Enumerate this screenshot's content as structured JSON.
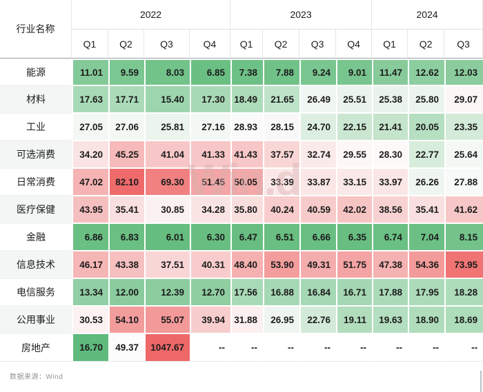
{
  "watermark": "Win.d",
  "footer": {
    "source_label": "数据来源：Wind"
  },
  "colors": {
    "green_max": "#5fba7d",
    "red_max": "#ee6868",
    "neutral": "#ffffff",
    "header_rule": "#989ea3",
    "grid_light": "#e2e5e7"
  },
  "table": {
    "corner_label": "行业名称",
    "year_groups": [
      {
        "label": "2022",
        "span": 4
      },
      {
        "label": "2023",
        "span": 4
      },
      {
        "label": "2024",
        "span": 3
      }
    ],
    "quarter_headers": [
      "Q1",
      "Q2",
      "Q3",
      "Q4",
      "Q1",
      "Q2",
      "Q3",
      "Q4",
      "Q1",
      "Q2",
      "Q3"
    ],
    "rows": [
      {
        "label": "能源",
        "cells": [
          {
            "v": "11.01",
            "c": "#84ca99"
          },
          {
            "v": "9.59",
            "c": "#7bc792"
          },
          {
            "v": "8.03",
            "c": "#72c38a"
          },
          {
            "v": "6.85",
            "c": "#6abf83"
          },
          {
            "v": "7.38",
            "c": "#6ec186"
          },
          {
            "v": "7.88",
            "c": "#71c289"
          },
          {
            "v": "9.24",
            "c": "#79c690"
          },
          {
            "v": "9.01",
            "c": "#78c58f"
          },
          {
            "v": "11.47",
            "c": "#87cb9b"
          },
          {
            "v": "12.62",
            "c": "#8dcea1"
          },
          {
            "v": "12.03",
            "c": "#8acc9e"
          }
        ]
      },
      {
        "label": "材料",
        "cells": [
          {
            "v": "17.63",
            "c": "#a9dab7"
          },
          {
            "v": "17.71",
            "c": "#aadab8"
          },
          {
            "v": "15.40",
            "c": "#9dd5ae"
          },
          {
            "v": "17.30",
            "c": "#a8d9b6"
          },
          {
            "v": "18.49",
            "c": "#addcba"
          },
          {
            "v": "21.65",
            "c": "#bee3c8"
          },
          {
            "v": "26.49",
            "c": "#f0f6f1"
          },
          {
            "v": "25.51",
            "c": "#eaf3ec"
          },
          {
            "v": "25.38",
            "c": "#e9f2eb"
          },
          {
            "v": "25.80",
            "c": "#ebf4ed"
          },
          {
            "v": "29.07",
            "c": "#fdf6f6"
          }
        ]
      },
      {
        "label": "工业",
        "cells": [
          {
            "v": "27.05",
            "c": "#f3f8f4"
          },
          {
            "v": "27.06",
            "c": "#f3f8f4"
          },
          {
            "v": "25.81",
            "c": "#ebf4ed"
          },
          {
            "v": "27.16",
            "c": "#f4f8f5"
          },
          {
            "v": "28.93",
            "c": "#fbfafa"
          },
          {
            "v": "28.15",
            "c": "#f9f8f8"
          },
          {
            "v": "24.70",
            "c": "#dcefe1"
          },
          {
            "v": "22.15",
            "c": "#cbe7d1"
          },
          {
            "v": "21.41",
            "c": "#c5e4cc"
          },
          {
            "v": "20.05",
            "c": "#b6dfc1"
          },
          {
            "v": "23.35",
            "c": "#d3ebd8"
          }
        ]
      },
      {
        "label": "可选消费",
        "cells": [
          {
            "v": "34.20",
            "c": "#fae3e3"
          },
          {
            "v": "45.25",
            "c": "#f6baba"
          },
          {
            "v": "41.04",
            "c": "#f7c7c7"
          },
          {
            "v": "41.33",
            "c": "#f7c6c6"
          },
          {
            "v": "41.43",
            "c": "#f7c6c6"
          },
          {
            "v": "37.57",
            "c": "#f9d6d6"
          },
          {
            "v": "32.74",
            "c": "#fbeaea"
          },
          {
            "v": "29.55",
            "c": "#fdf7f7"
          },
          {
            "v": "28.30",
            "c": "#fdf9f9"
          },
          {
            "v": "22.77",
            "c": "#d8ecdc"
          },
          {
            "v": "25.64",
            "c": "#f4f8f5"
          }
        ]
      },
      {
        "label": "日常消费",
        "cells": [
          {
            "v": "47.02",
            "c": "#f5b3b3"
          },
          {
            "v": "82.10",
            "c": "#ef6a6a"
          },
          {
            "v": "69.30",
            "c": "#f18181"
          },
          {
            "v": "51.45",
            "c": "#f4a5a5"
          },
          {
            "v": "50.05",
            "c": "#f4a8a8"
          },
          {
            "v": "33.39",
            "c": "#fbe7e7"
          },
          {
            "v": "33.87",
            "c": "#fbe6e6"
          },
          {
            "v": "33.15",
            "c": "#fbe8e8"
          },
          {
            "v": "33.97",
            "c": "#fbe6e6"
          },
          {
            "v": "26.26",
            "c": "#eff5f0"
          },
          {
            "v": "27.88",
            "c": "#f7faf8"
          }
        ]
      },
      {
        "label": "医疗保健",
        "cells": [
          {
            "v": "43.95",
            "c": "#f6bfbf"
          },
          {
            "v": "35.41",
            "c": "#f9dfdf"
          },
          {
            "v": "30.85",
            "c": "#fcf1f1"
          },
          {
            "v": "34.28",
            "c": "#fae3e3"
          },
          {
            "v": "35.80",
            "c": "#f9dede"
          },
          {
            "v": "40.24",
            "c": "#f8cccc"
          },
          {
            "v": "40.59",
            "c": "#f8cbcb"
          },
          {
            "v": "42.02",
            "c": "#f7c4c4"
          },
          {
            "v": "38.56",
            "c": "#f8d2d2"
          },
          {
            "v": "35.41",
            "c": "#f9dfdf"
          },
          {
            "v": "41.62",
            "c": "#f7c7c7"
          }
        ]
      },
      {
        "label": "金融",
        "cells": [
          {
            "v": "6.86",
            "c": "#6abf83"
          },
          {
            "v": "6.83",
            "c": "#6abf83"
          },
          {
            "v": "6.01",
            "c": "#66bd80"
          },
          {
            "v": "6.30",
            "c": "#68be81"
          },
          {
            "v": "6.47",
            "c": "#68be82"
          },
          {
            "v": "6.51",
            "c": "#69be82"
          },
          {
            "v": "6.66",
            "c": "#69bf83"
          },
          {
            "v": "6.35",
            "c": "#68be81"
          },
          {
            "v": "6.74",
            "c": "#6ac084"
          },
          {
            "v": "7.04",
            "c": "#6cc085"
          },
          {
            "v": "8.15",
            "c": "#73c38b"
          }
        ]
      },
      {
        "label": "信息技术",
        "cells": [
          {
            "v": "46.17",
            "c": "#f5b6b6"
          },
          {
            "v": "43.38",
            "c": "#f6c0c0"
          },
          {
            "v": "37.51",
            "c": "#f9d6d6"
          },
          {
            "v": "40.31",
            "c": "#f8cccc"
          },
          {
            "v": "48.40",
            "c": "#f5b0b0"
          },
          {
            "v": "53.90",
            "c": "#f39d9d"
          },
          {
            "v": "49.31",
            "c": "#f4adad"
          },
          {
            "v": "51.75",
            "c": "#f4a4a4"
          },
          {
            "v": "47.38",
            "c": "#f5b2b2"
          },
          {
            "v": "54.36",
            "c": "#f39b9b"
          },
          {
            "v": "73.95",
            "c": "#f07474"
          }
        ]
      },
      {
        "label": "电信服务",
        "cells": [
          {
            "v": "13.34",
            "c": "#91cfa4"
          },
          {
            "v": "12.00",
            "c": "#8acc9e"
          },
          {
            "v": "12.39",
            "c": "#8ccda0"
          },
          {
            "v": "12.70",
            "c": "#8ecea1"
          },
          {
            "v": "17.56",
            "c": "#a9dab7"
          },
          {
            "v": "16.88",
            "c": "#a5d8b4"
          },
          {
            "v": "16.84",
            "c": "#a5d8b4"
          },
          {
            "v": "16.71",
            "c": "#a4d7b3"
          },
          {
            "v": "17.88",
            "c": "#aadab8"
          },
          {
            "v": "17.95",
            "c": "#abdbb9"
          },
          {
            "v": "18.28",
            "c": "#addcba"
          }
        ]
      },
      {
        "label": "公用事业",
        "cells": [
          {
            "v": "30.53",
            "c": "#fcf2f2"
          },
          {
            "v": "54.10",
            "c": "#f39c9c"
          },
          {
            "v": "55.07",
            "c": "#f39999"
          },
          {
            "v": "39.94",
            "c": "#f8cdcd"
          },
          {
            "v": "31.88",
            "c": "#fcefef"
          },
          {
            "v": "26.95",
            "c": "#eff5f0"
          },
          {
            "v": "22.76",
            "c": "#d2ead7"
          },
          {
            "v": "19.11",
            "c": "#b1ddbd"
          },
          {
            "v": "19.63",
            "c": "#b3debf"
          },
          {
            "v": "18.90",
            "c": "#afddbc"
          },
          {
            "v": "18.69",
            "c": "#aeddbb"
          }
        ]
      },
      {
        "label": "房地产",
        "cells": [
          {
            "v": "16.70",
            "c": "#5fba7d"
          },
          {
            "v": "49.37",
            "c": "#fcfcfc"
          },
          {
            "v": "1047.67",
            "c": "#ee6868"
          },
          {
            "v": "--",
            "c": "#ffffff"
          },
          {
            "v": "--",
            "c": "#ffffff"
          },
          {
            "v": "--",
            "c": "#ffffff"
          },
          {
            "v": "--",
            "c": "#ffffff"
          },
          {
            "v": "--",
            "c": "#ffffff"
          },
          {
            "v": "--",
            "c": "#ffffff"
          },
          {
            "v": "--",
            "c": "#ffffff"
          },
          {
            "v": "--",
            "c": "#ffffff"
          }
        ]
      }
    ]
  },
  "chart_data": {
    "type": "heatmap",
    "title": "",
    "xlabel": "",
    "ylabel": "行业名称",
    "columns": [
      "2022 Q1",
      "2022 Q2",
      "2022 Q3",
      "2022 Q4",
      "2023 Q1",
      "2023 Q2",
      "2023 Q3",
      "2023 Q4",
      "2024 Q1",
      "2024 Q2",
      "2024 Q3"
    ],
    "legend_position": "none",
    "grid": false,
    "color_scale": "low=green, mid~28=white, high=red",
    "series": [
      {
        "name": "能源",
        "values": [
          11.01,
          9.59,
          8.03,
          6.85,
          7.38,
          7.88,
          9.24,
          9.01,
          11.47,
          12.62,
          12.03
        ]
      },
      {
        "name": "材料",
        "values": [
          17.63,
          17.71,
          15.4,
          17.3,
          18.49,
          21.65,
          26.49,
          25.51,
          25.38,
          25.8,
          29.07
        ]
      },
      {
        "name": "工业",
        "values": [
          27.05,
          27.06,
          25.81,
          27.16,
          28.93,
          28.15,
          24.7,
          22.15,
          21.41,
          20.05,
          23.35
        ]
      },
      {
        "name": "可选消费",
        "values": [
          34.2,
          45.25,
          41.04,
          41.33,
          41.43,
          37.57,
          32.74,
          29.55,
          28.3,
          22.77,
          25.64
        ]
      },
      {
        "name": "日常消费",
        "values": [
          47.02,
          82.1,
          69.3,
          51.45,
          50.05,
          33.39,
          33.87,
          33.15,
          33.97,
          26.26,
          27.88
        ]
      },
      {
        "name": "医疗保健",
        "values": [
          43.95,
          35.41,
          30.85,
          34.28,
          35.8,
          40.24,
          40.59,
          42.02,
          38.56,
          35.41,
          41.62
        ]
      },
      {
        "name": "金融",
        "values": [
          6.86,
          6.83,
          6.01,
          6.3,
          6.47,
          6.51,
          6.66,
          6.35,
          6.74,
          7.04,
          8.15
        ]
      },
      {
        "name": "信息技术",
        "values": [
          46.17,
          43.38,
          37.51,
          40.31,
          48.4,
          53.9,
          49.31,
          51.75,
          47.38,
          54.36,
          73.95
        ]
      },
      {
        "name": "电信服务",
        "values": [
          13.34,
          12.0,
          12.39,
          12.7,
          17.56,
          16.88,
          16.84,
          16.71,
          17.88,
          17.95,
          18.28
        ]
      },
      {
        "name": "公用事业",
        "values": [
          30.53,
          54.1,
          55.07,
          39.94,
          31.88,
          26.95,
          22.76,
          19.11,
          19.63,
          18.9,
          18.69
        ]
      },
      {
        "name": "房地产",
        "values": [
          16.7,
          49.37,
          1047.67,
          null,
          null,
          null,
          null,
          null,
          null,
          null,
          null
        ]
      }
    ],
    "annotations": [
      "数据来源：Wind",
      "watermark: Win.d"
    ]
  }
}
